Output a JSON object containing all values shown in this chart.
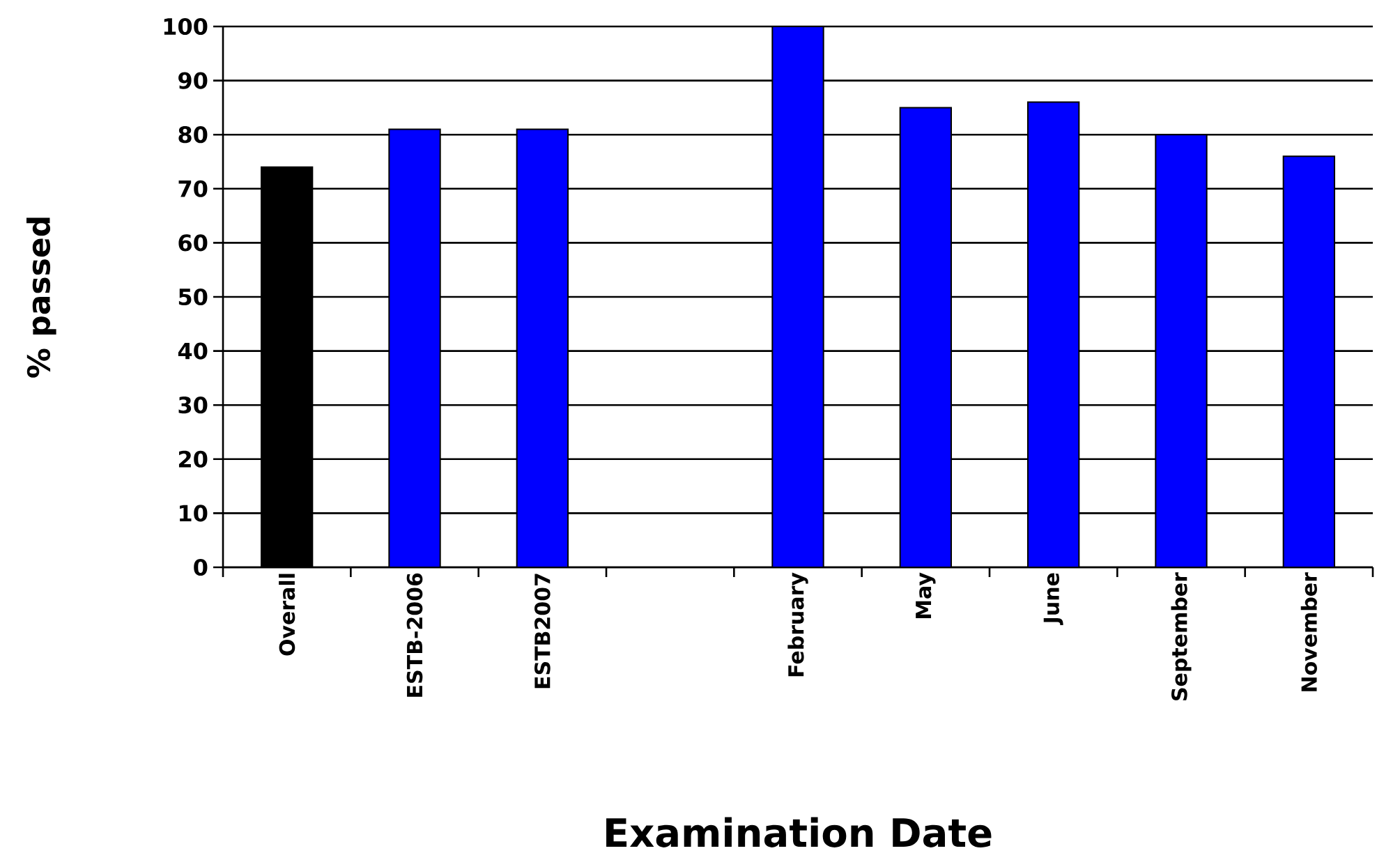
{
  "chart_data": {
    "type": "bar",
    "xlabel": "Examination Date",
    "ylabel": "% passed",
    "categories": [
      "Overall",
      "ESTB-2006",
      "ESTB2007",
      null,
      "February",
      "May",
      "June",
      "September",
      "November"
    ],
    "values": [
      74,
      81,
      81,
      null,
      100,
      85,
      86,
      80,
      76
    ],
    "colors": [
      "#000000",
      "#0000ff",
      "#0000ff",
      "#0000ff",
      "#0000ff",
      "#0000ff",
      "#0000ff",
      "#0000ff",
      "#0000ff"
    ],
    "ylim": [
      0,
      100
    ],
    "yticks": [
      0,
      10,
      20,
      30,
      40,
      50,
      60,
      70,
      80,
      90,
      100
    ],
    "grid": "y"
  }
}
